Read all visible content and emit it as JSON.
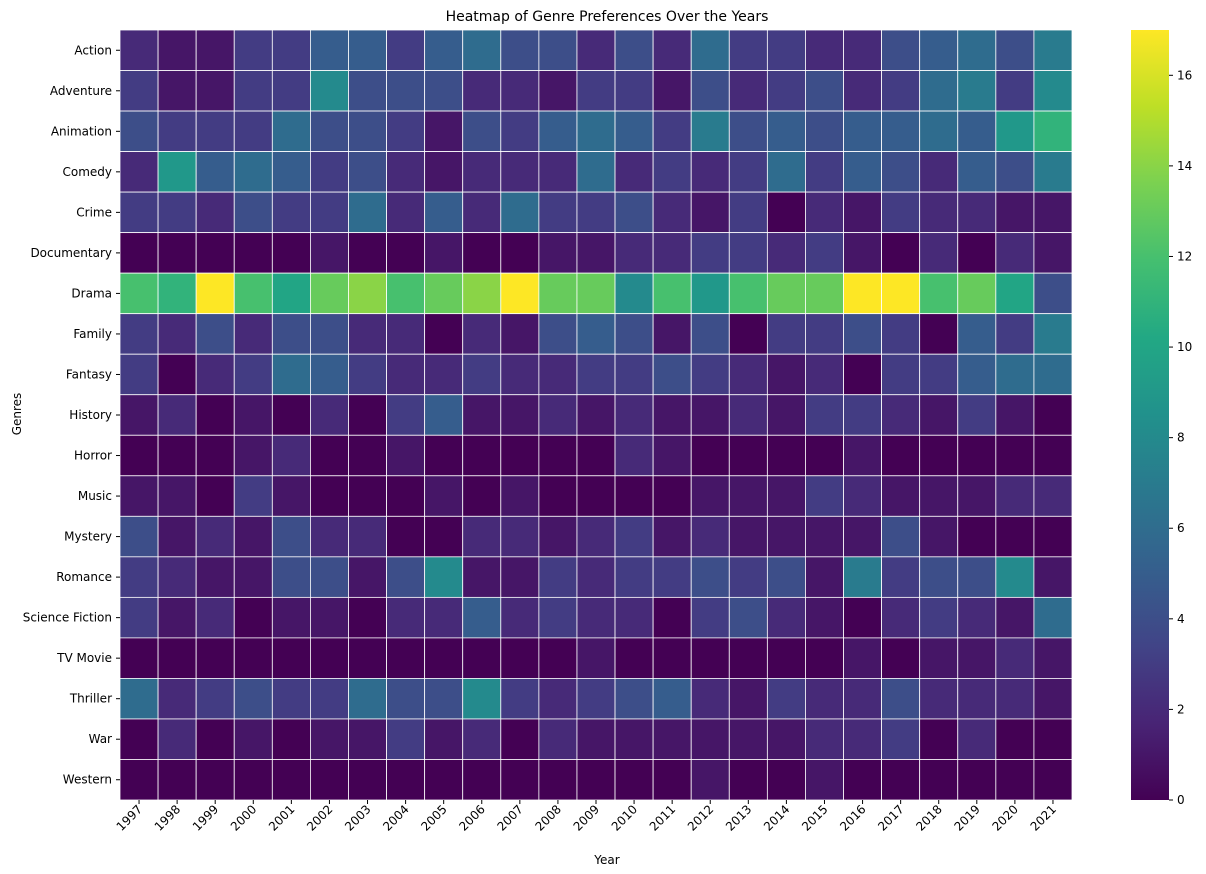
{
  "chart_data": {
    "type": "heatmap",
    "title": "Heatmap of Genre Preferences Over the Years",
    "xlabel": "Year",
    "ylabel": "Genres",
    "x": [
      "1997",
      "1998",
      "1999",
      "2000",
      "2001",
      "2002",
      "2003",
      "2004",
      "2005",
      "2006",
      "2007",
      "2008",
      "2009",
      "2010",
      "2011",
      "2012",
      "2013",
      "2014",
      "2015",
      "2016",
      "2017",
      "2018",
      "2019",
      "2020",
      "2021"
    ],
    "y": [
      "Action",
      "Adventure",
      "Animation",
      "Comedy",
      "Crime",
      "Documentary",
      "Drama",
      "Family",
      "Fantasy",
      "History",
      "Horror",
      "Music",
      "Mystery",
      "Romance",
      "Science Fiction",
      "TV Movie",
      "Thriller",
      "War",
      "Western"
    ],
    "values": [
      [
        2,
        1,
        1,
        3,
        3,
        5,
        5,
        3,
        5,
        6,
        4,
        4,
        2,
        4,
        2,
        6,
        3,
        3,
        2,
        2,
        4,
        5,
        6,
        4,
        7
      ],
      [
        3,
        1,
        1,
        3,
        3,
        8,
        4,
        4,
        4,
        2,
        2,
        1,
        3,
        3,
        1,
        4,
        2,
        3,
        4,
        2,
        3,
        6,
        7,
        3,
        8
      ],
      [
        4,
        3,
        3,
        3,
        6,
        4,
        4,
        3,
        1,
        4,
        3,
        5,
        6,
        5,
        3,
        7,
        4,
        5,
        4,
        5,
        5,
        6,
        5,
        9,
        11
      ],
      [
        2,
        9,
        5,
        6,
        5,
        3,
        4,
        2,
        1,
        2,
        2,
        2,
        6,
        2,
        3,
        2,
        3,
        6,
        3,
        5,
        4,
        2,
        5,
        4,
        7
      ],
      [
        3,
        3,
        2,
        4,
        3,
        3,
        6,
        2,
        5,
        2,
        6,
        3,
        3,
        4,
        2,
        1,
        3,
        0,
        2,
        1,
        3,
        2,
        2,
        1,
        1
      ],
      [
        0,
        0,
        0,
        0,
        0,
        1,
        0,
        0,
        1,
        0,
        0,
        1,
        1,
        2,
        2,
        3,
        3,
        2,
        3,
        1,
        0,
        2,
        0,
        2,
        1
      ],
      [
        12,
        11,
        17,
        12,
        10,
        13,
        14,
        12,
        13,
        14,
        17,
        13,
        13,
        8,
        12,
        9,
        12,
        13,
        13,
        17,
        17,
        12,
        13,
        10,
        4
      ],
      [
        3,
        2,
        4,
        2,
        4,
        4,
        2,
        2,
        0,
        2,
        1,
        4,
        5,
        4,
        1,
        4,
        0,
        3,
        3,
        4,
        3,
        0,
        5,
        3,
        7
      ],
      [
        3,
        0,
        2,
        3,
        6,
        5,
        3,
        2,
        2,
        3,
        2,
        2,
        3,
        3,
        4,
        3,
        2,
        1,
        2,
        0,
        3,
        3,
        5,
        6,
        6
      ],
      [
        1,
        2,
        0,
        1,
        0,
        2,
        0,
        3,
        5,
        1,
        1,
        2,
        1,
        2,
        1,
        1,
        2,
        1,
        3,
        3,
        2,
        1,
        3,
        1,
        0
      ],
      [
        0,
        0,
        0,
        1,
        2,
        0,
        0,
        1,
        0,
        0,
        0,
        0,
        0,
        2,
        1,
        0,
        0,
        0,
        0,
        1,
        0,
        0,
        0,
        0,
        0
      ],
      [
        1,
        1,
        0,
        3,
        1,
        0,
        0,
        0,
        1,
        0,
        1,
        0,
        0,
        0,
        0,
        1,
        1,
        1,
        3,
        2,
        1,
        1,
        1,
        2,
        2
      ],
      [
        4,
        1,
        2,
        1,
        4,
        2,
        2,
        0,
        0,
        2,
        2,
        1,
        2,
        3,
        1,
        2,
        1,
        1,
        1,
        1,
        4,
        1,
        0,
        0,
        0
      ],
      [
        3,
        2,
        1,
        1,
        4,
        4,
        1,
        4,
        8,
        1,
        1,
        3,
        2,
        3,
        3,
        4,
        3,
        4,
        1,
        7,
        3,
        4,
        4,
        8,
        1
      ],
      [
        3,
        1,
        2,
        0,
        1,
        1,
        0,
        2,
        2,
        5,
        2,
        3,
        2,
        2,
        0,
        3,
        4,
        2,
        1,
        0,
        2,
        3,
        2,
        1,
        6
      ],
      [
        0,
        0,
        0,
        0,
        0,
        0,
        0,
        0,
        0,
        0,
        0,
        0,
        1,
        0,
        0,
        0,
        0,
        0,
        0,
        1,
        0,
        1,
        1,
        2,
        1
      ],
      [
        6,
        2,
        3,
        4,
        3,
        3,
        6,
        4,
        4,
        8,
        3,
        2,
        3,
        4,
        5,
        2,
        1,
        3,
        2,
        2,
        4,
        2,
        2,
        2,
        1
      ],
      [
        0,
        2,
        0,
        1,
        0,
        1,
        1,
        3,
        1,
        2,
        0,
        2,
        1,
        1,
        1,
        1,
        1,
        1,
        2,
        2,
        3,
        0,
        2,
        0,
        0
      ],
      [
        0,
        0,
        0,
        0,
        0,
        0,
        0,
        0,
        0,
        0,
        0,
        0,
        0,
        0,
        0,
        1,
        0,
        0,
        1,
        0,
        0,
        0,
        0,
        0,
        0
      ]
    ],
    "colormap": "viridis",
    "vmin": 0,
    "vmax": 17,
    "colorbar_ticks": [
      0,
      2,
      4,
      6,
      8,
      10,
      12,
      14,
      16
    ],
    "grid": false,
    "cell_border_color": "#ffffff"
  }
}
